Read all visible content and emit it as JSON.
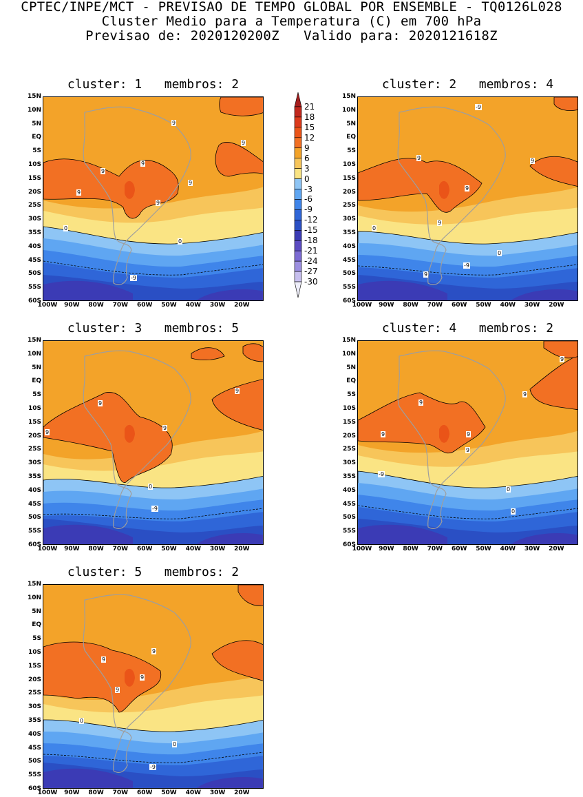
{
  "header": {
    "line1": "CPTEC/INPE/MCT - PREVISAO DE TEMPO GLOBAL POR ENSEMBLE - TQ0126L028",
    "line2": "Cluster Medio para a Temperatura (C) em 700 hPa",
    "line3": "Previsao de: 2020120200Z   Valido para: 2020121618Z"
  },
  "axes": {
    "lat_labels": [
      "15N",
      "10N",
      "5N",
      "EQ",
      "5S",
      "10S",
      "15S",
      "20S",
      "25S",
      "30S",
      "35S",
      "40S",
      "45S",
      "50S",
      "55S",
      "60S"
    ],
    "lon_labels": [
      "100W",
      "90W",
      "80W",
      "70W",
      "60W",
      "50W",
      "40W",
      "30W",
      "20W"
    ]
  },
  "colorbar": {
    "labels": [
      "21",
      "18",
      "15",
      "12",
      "9",
      "6",
      "3",
      "0",
      "-3",
      "-6",
      "-9",
      "-12",
      "-15",
      "-18",
      "-21",
      "-24",
      "-27",
      "-30"
    ],
    "colors": [
      "#a51e1e",
      "#c2281e",
      "#dc3a1c",
      "#ea5418",
      "#f27023",
      "#f3a329",
      "#f7c55a",
      "#fae484",
      "#8ec5f5",
      "#5fa6f2",
      "#3f85ea",
      "#2f66d8",
      "#2a4fc4",
      "#3b3bb5",
      "#5c4bc2",
      "#7c6bd4",
      "#9c8fe0",
      "#c7bfee",
      "#eeeefa"
    ]
  },
  "panels": [
    {
      "cluster": "1",
      "members": "2",
      "title": "cluster: 1   membros: 2",
      "contour_labels": [
        "9",
        "9",
        "9",
        "9",
        "9",
        "9",
        "9",
        "0",
        "0",
        "-9"
      ]
    },
    {
      "cluster": "2",
      "members": "4",
      "title": "cluster: 2   membros: 4",
      "contour_labels": [
        "9",
        "9",
        "9",
        "9",
        "9",
        "0",
        "0",
        "-9",
        "-9"
      ]
    },
    {
      "cluster": "3",
      "members": "5",
      "title": "cluster: 3   membros: 5",
      "contour_labels": [
        "9",
        "9",
        "9",
        "9",
        "0",
        "-9"
      ]
    },
    {
      "cluster": "4",
      "members": "2",
      "title": "cluster: 4   membros: 2",
      "contour_labels": [
        "9",
        "9",
        "9",
        "9",
        "9",
        "9",
        "0",
        "0",
        "-9"
      ]
    },
    {
      "cluster": "5",
      "members": "2",
      "title": "cluster: 5   membros: 2",
      "contour_labels": [
        "9",
        "9",
        "9",
        "9",
        "0",
        "0",
        "-9"
      ]
    }
  ]
}
